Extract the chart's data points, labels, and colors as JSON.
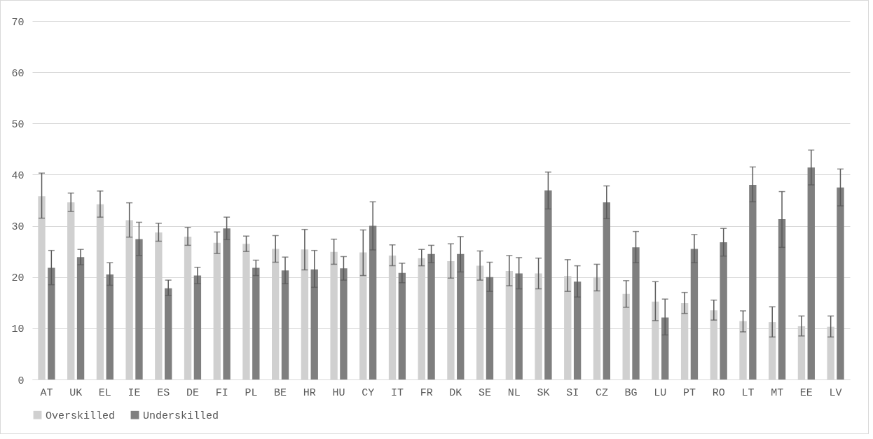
{
  "chart_data": {
    "type": "bar",
    "categories": [
      "AT",
      "UK",
      "EL",
      "IE",
      "ES",
      "DE",
      "FI",
      "PL",
      "BE",
      "HR",
      "HU",
      "CY",
      "IT",
      "FR",
      "DK",
      "SE",
      "NL",
      "SK",
      "SI",
      "CZ",
      "BG",
      "LU",
      "PT",
      "RO",
      "LT",
      "MT",
      "EE",
      "LV"
    ],
    "series": [
      {
        "name": "Overskilled",
        "color": "#d0d0d0",
        "values": [
          35.8,
          34.6,
          34.2,
          31.1,
          28.7,
          27.9,
          26.7,
          26.5,
          25.5,
          25.4,
          24.9,
          24.8,
          24.2,
          23.7,
          23.1,
          22.2,
          21.2,
          20.7,
          20.2,
          20.0,
          16.7,
          15.2,
          14.9,
          13.5,
          11.4,
          11.2,
          10.4,
          10.3
        ],
        "errors": [
          [
            31.5,
            40.3
          ],
          [
            32.8,
            36.4
          ],
          [
            31.7,
            36.8
          ],
          [
            27.8,
            34.5
          ],
          [
            27.0,
            30.5
          ],
          [
            26.2,
            29.7
          ],
          [
            24.6,
            28.8
          ],
          [
            25.0,
            28.0
          ],
          [
            22.9,
            28.1
          ],
          [
            21.4,
            29.3
          ],
          [
            22.5,
            27.4
          ],
          [
            20.3,
            29.2
          ],
          [
            22.2,
            26.3
          ],
          [
            22.2,
            25.4
          ],
          [
            19.8,
            26.5
          ],
          [
            19.4,
            25.1
          ],
          [
            18.3,
            24.2
          ],
          [
            17.7,
            23.7
          ],
          [
            17.2,
            23.4
          ],
          [
            17.3,
            22.5
          ],
          [
            14.1,
            19.3
          ],
          [
            11.5,
            19.1
          ],
          [
            12.9,
            17.0
          ],
          [
            11.6,
            15.5
          ],
          [
            9.3,
            13.4
          ],
          [
            8.3,
            14.2
          ],
          [
            8.5,
            12.4
          ],
          [
            8.3,
            12.4
          ]
        ]
      },
      {
        "name": "Underskilled",
        "color": "#7f7f7f",
        "values": [
          21.8,
          23.9,
          20.5,
          27.4,
          17.8,
          20.3,
          29.5,
          21.8,
          21.3,
          21.5,
          21.7,
          30.0,
          20.8,
          24.5,
          24.5,
          20.0,
          20.7,
          36.9,
          19.1,
          34.6,
          25.8,
          12.1,
          25.5,
          26.8,
          38.0,
          31.3,
          41.4,
          37.5
        ],
        "errors": [
          [
            18.5,
            25.2
          ],
          [
            22.4,
            25.4
          ],
          [
            18.4,
            22.8
          ],
          [
            24.2,
            30.7
          ],
          [
            16.4,
            19.4
          ],
          [
            18.7,
            21.9
          ],
          [
            27.3,
            31.7
          ],
          [
            20.3,
            23.3
          ],
          [
            18.7,
            23.9
          ],
          [
            18.0,
            25.2
          ],
          [
            19.4,
            24.0
          ],
          [
            25.3,
            34.7
          ],
          [
            18.9,
            22.7
          ],
          [
            22.8,
            26.2
          ],
          [
            21.0,
            27.9
          ],
          [
            17.2,
            22.9
          ],
          [
            17.7,
            23.8
          ],
          [
            33.3,
            40.5
          ],
          [
            16.1,
            22.2
          ],
          [
            31.4,
            37.8
          ],
          [
            22.8,
            28.9
          ],
          [
            8.7,
            15.7
          ],
          [
            22.8,
            28.3
          ],
          [
            24.1,
            29.5
          ],
          [
            34.7,
            41.5
          ],
          [
            25.8,
            36.7
          ],
          [
            38.0,
            44.8
          ],
          [
            33.9,
            41.1
          ]
        ]
      }
    ],
    "ylim": [
      0,
      70
    ],
    "yticks": [
      0,
      10,
      20,
      30,
      40,
      50,
      60,
      70
    ],
    "grid": "y",
    "legend": "bottom"
  }
}
